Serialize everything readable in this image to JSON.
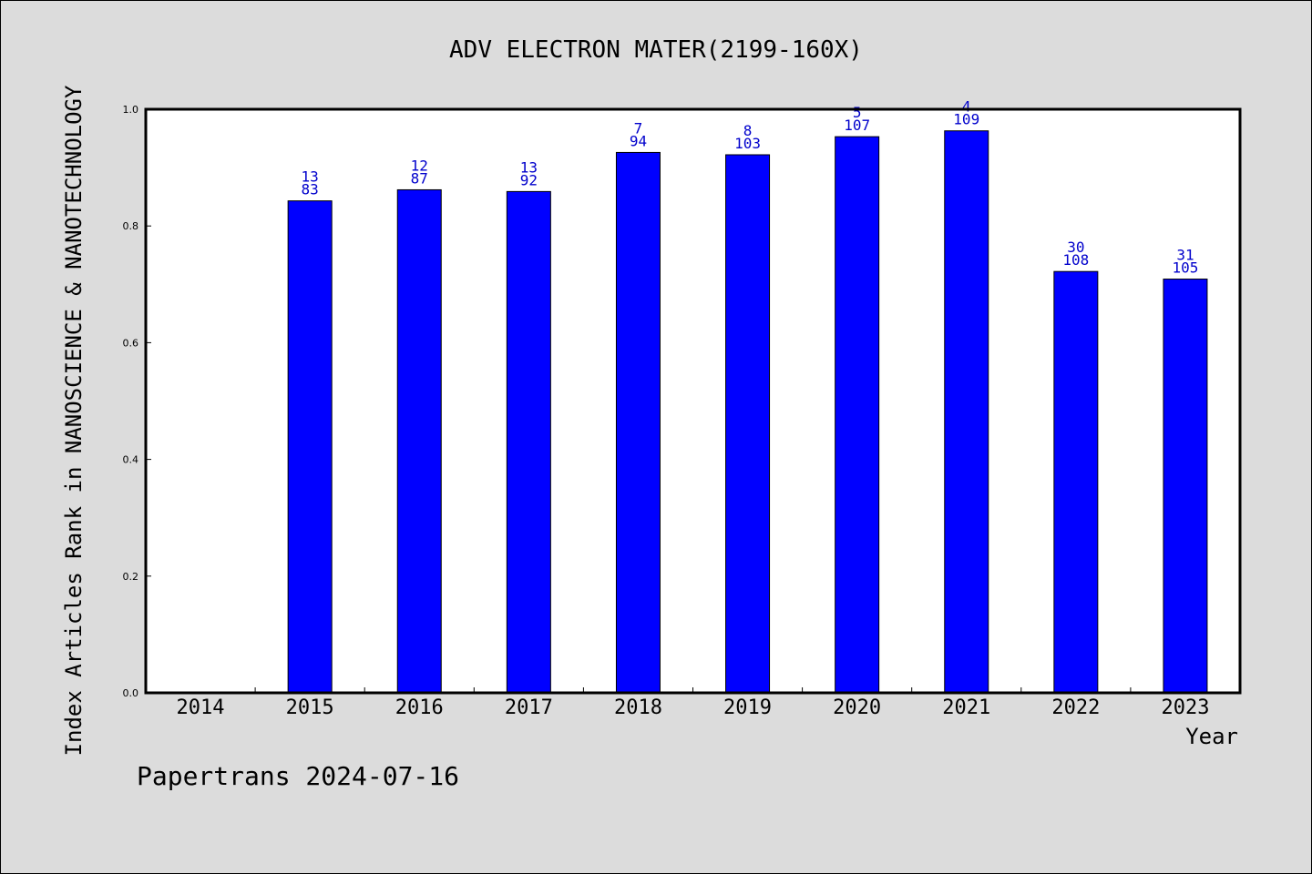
{
  "footer": "Papertrans 2024-07-16",
  "colors": {
    "bar": "#0000ff",
    "label": "#0000cc",
    "background": "#dcdcdc",
    "plot": "#ffffff"
  },
  "chart_data": {
    "type": "bar",
    "title": "ADV ELECTRON MATER(2199-160X)",
    "xlabel": "Year",
    "ylabel": "Index Articles Rank in NANOSCIENCE & NANOTECHNOLOGY",
    "ylim": [
      0,
      1.0
    ],
    "yticks": [
      "0.0",
      "0.2",
      "0.4",
      "0.6",
      "0.8",
      "1.0"
    ],
    "grid": false,
    "categories": [
      "2014",
      "2015",
      "2016",
      "2017",
      "2018",
      "2019",
      "2020",
      "2021",
      "2022",
      "2023"
    ],
    "values": [
      null,
      0.843,
      0.862,
      0.859,
      0.926,
      0.922,
      0.953,
      0.963,
      0.722,
      0.709
    ],
    "labels_top": [
      "",
      "13",
      "12",
      "13",
      "7",
      "8",
      "5",
      "4",
      "30",
      "31"
    ],
    "labels_bottom": [
      "",
      "83",
      "87",
      "92",
      "94",
      "103",
      "107",
      "109",
      "108",
      "105"
    ]
  }
}
